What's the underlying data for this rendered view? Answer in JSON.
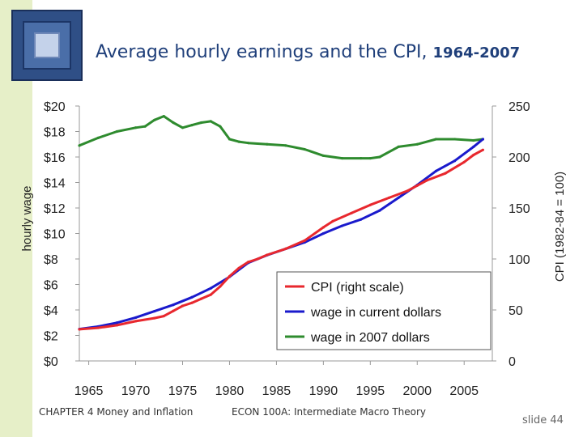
{
  "title": {
    "main": "Average hourly earnings and the CPI, ",
    "years": "1964-2007"
  },
  "footer": {
    "chapter": "CHAPTER 4   Money and Inflation",
    "course": "ECON 100A: Intermediate Macro Theory",
    "slide": "slide 44"
  },
  "colors": {
    "cpi": "#e8282e",
    "wage_current": "#1a1acc",
    "wage_2007": "#2e8b2e",
    "title": "#1f3f7a"
  },
  "chart_data": {
    "type": "line",
    "title": "Average hourly earnings and the CPI, 1964-2007",
    "xlabel": "",
    "ylabel_left": "hourly wage",
    "ylabel_right": "CPI   (1982-84 = 100)",
    "xlim": [
      1964,
      2008
    ],
    "ylim_left": [
      0,
      20
    ],
    "ylim_right": [
      0,
      250
    ],
    "x_ticks": [
      1965,
      1970,
      1975,
      1980,
      1985,
      1990,
      1995,
      2000,
      2005
    ],
    "x_tick_labels": [
      "1965",
      "1970",
      "1975",
      "1980",
      "1985",
      "1990",
      "1995",
      "2000",
      "2005"
    ],
    "y_left_ticks": [
      0,
      2,
      4,
      6,
      8,
      10,
      12,
      14,
      16,
      18,
      20
    ],
    "y_left_tick_labels": [
      "$0",
      "$2",
      "$4",
      "$6",
      "$8",
      "$10",
      "$12",
      "$14",
      "$16",
      "$18",
      "$20"
    ],
    "y_right_ticks": [
      0,
      50,
      100,
      150,
      200,
      250
    ],
    "y_right_tick_labels": [
      "0",
      "50",
      "100",
      "150",
      "200",
      "250"
    ],
    "legend": {
      "placement": "lower-right",
      "entries": [
        "CPI (right scale)",
        "wage in current dollars",
        "wage in 2007 dollars"
      ]
    },
    "series": [
      {
        "name": "CPI (right scale)",
        "axis": "right",
        "color": "#e8282e",
        "x": [
          1964,
          1966,
          1968,
          1970,
          1972,
          1973,
          1974,
          1975,
          1976,
          1977,
          1978,
          1979,
          1980,
          1981,
          1982,
          1983,
          1984,
          1986,
          1988,
          1990,
          1991,
          1993,
          1995,
          1997,
          1999,
          2000,
          2001,
          2003,
          2005,
          2006,
          2007
        ],
        "values": [
          31,
          32.5,
          35,
          39,
          42,
          44,
          49,
          54,
          57,
          61,
          65,
          73,
          83,
          91,
          97,
          100,
          104,
          110,
          118,
          131,
          137,
          145,
          153,
          160,
          167,
          172,
          177,
          184,
          195,
          202,
          207
        ]
      },
      {
        "name": "wage in current dollars",
        "axis": "left",
        "color": "#1a1acc",
        "x": [
          1964,
          1966,
          1968,
          1970,
          1972,
          1974,
          1976,
          1978,
          1980,
          1982,
          1984,
          1986,
          1988,
          1990,
          1992,
          1994,
          1996,
          1998,
          2000,
          2002,
          2004,
          2006,
          2007
        ],
        "values": [
          2.5,
          2.7,
          3.0,
          3.4,
          3.9,
          4.4,
          5.0,
          5.7,
          6.6,
          7.7,
          8.3,
          8.8,
          9.3,
          10.0,
          10.6,
          11.1,
          11.8,
          12.8,
          13.8,
          14.9,
          15.7,
          16.8,
          17.4
        ]
      },
      {
        "name": "wage in 2007 dollars",
        "axis": "left",
        "color": "#2e8b2e",
        "x": [
          1964,
          1966,
          1968,
          1970,
          1971,
          1972,
          1973,
          1974,
          1975,
          1976,
          1977,
          1978,
          1979,
          1980,
          1981,
          1982,
          1984,
          1986,
          1988,
          1990,
          1992,
          1994,
          1995,
          1996,
          1998,
          2000,
          2002,
          2004,
          2006,
          2007
        ],
        "values": [
          16.9,
          17.5,
          18.0,
          18.3,
          18.4,
          18.9,
          19.2,
          18.7,
          18.3,
          18.5,
          18.7,
          18.8,
          18.4,
          17.4,
          17.2,
          17.1,
          17.0,
          16.9,
          16.6,
          16.1,
          15.9,
          15.9,
          15.9,
          16.0,
          16.8,
          17.0,
          17.4,
          17.4,
          17.3,
          17.4
        ]
      }
    ]
  }
}
